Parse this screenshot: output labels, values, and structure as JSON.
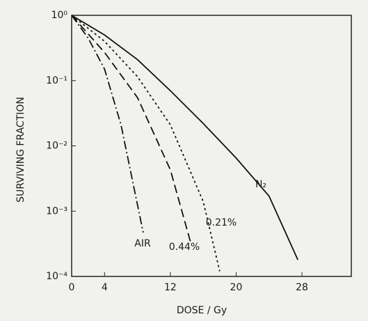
{
  "chart_data": {
    "type": "line",
    "x_label": "DOSE / Gy",
    "y_label": "SURVIVING FRACTION",
    "log_y": true,
    "xlim": [
      0,
      34
    ],
    "ylim": [
      0.0001,
      1
    ],
    "xticks": [
      0,
      4,
      12,
      20,
      28
    ],
    "yticks": [
      {
        "value": 1,
        "label": "10⁰"
      },
      {
        "value": 0.1,
        "label": "10⁻¹"
      },
      {
        "value": 0.01,
        "label": "10⁻²"
      },
      {
        "value": 0.001,
        "label": "10⁻³"
      },
      {
        "value": 0.0001,
        "label": "10⁻⁴"
      }
    ],
    "series": [
      {
        "name": "N₂",
        "color": "#111111",
        "line_style": "solid",
        "x": [
          0,
          4,
          8,
          12,
          16,
          20,
          24,
          27.5
        ],
        "values": [
          1,
          0.5,
          0.21,
          0.07,
          0.022,
          0.0065,
          0.0017,
          0.00018
        ]
      },
      {
        "name": "0.21%",
        "color": "#111111",
        "line_style": "dotted",
        "x": [
          0,
          4,
          8,
          12,
          16,
          18
        ],
        "values": [
          1,
          0.4,
          0.115,
          0.021,
          0.0014,
          0.00012
        ]
      },
      {
        "name": "0.44%",
        "color": "#111111",
        "line_style": "dashed",
        "x": [
          0,
          4,
          8,
          12,
          14.5
        ],
        "values": [
          1,
          0.27,
          0.055,
          0.0043,
          0.00032
        ]
      },
      {
        "name": "AIR",
        "color": "#111111",
        "line_style": "dashdot",
        "x": [
          0,
          2,
          4,
          6,
          8.7
        ],
        "values": [
          1,
          0.45,
          0.15,
          0.021,
          0.00047
        ]
      }
    ]
  }
}
